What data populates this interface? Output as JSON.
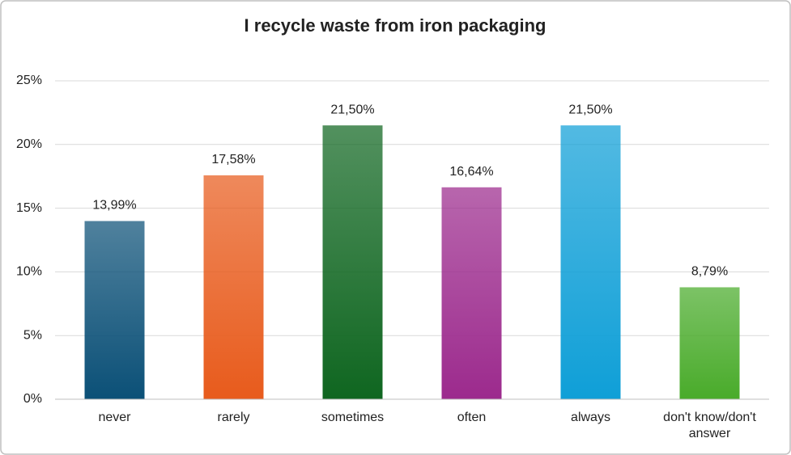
{
  "chart_data": {
    "type": "bar",
    "title": "I recycle waste from iron packaging",
    "categories": [
      "never",
      "rarely",
      "sometimes",
      "often",
      "always",
      "don't know/don't answer"
    ],
    "values": [
      13.99,
      17.58,
      21.5,
      16.64,
      21.5,
      8.79
    ],
    "value_labels": [
      "13,99%",
      "17,58%",
      "21,50%",
      "16,64%",
      "21,50%",
      "8,79%"
    ],
    "colors": [
      "#0b5077",
      "#e85b1c",
      "#0f6620",
      "#9c2a8d",
      "#0f9fd7",
      "#49ab2a"
    ],
    "ylim": [
      0,
      25
    ],
    "yticks": [
      {
        "value": 0,
        "label": "0%"
      },
      {
        "value": 5,
        "label": "5%"
      },
      {
        "value": 10,
        "label": "10%"
      },
      {
        "value": 15,
        "label": "15%"
      },
      {
        "value": 20,
        "label": "20%"
      },
      {
        "value": 25,
        "label": "25%"
      }
    ],
    "grid": true
  }
}
